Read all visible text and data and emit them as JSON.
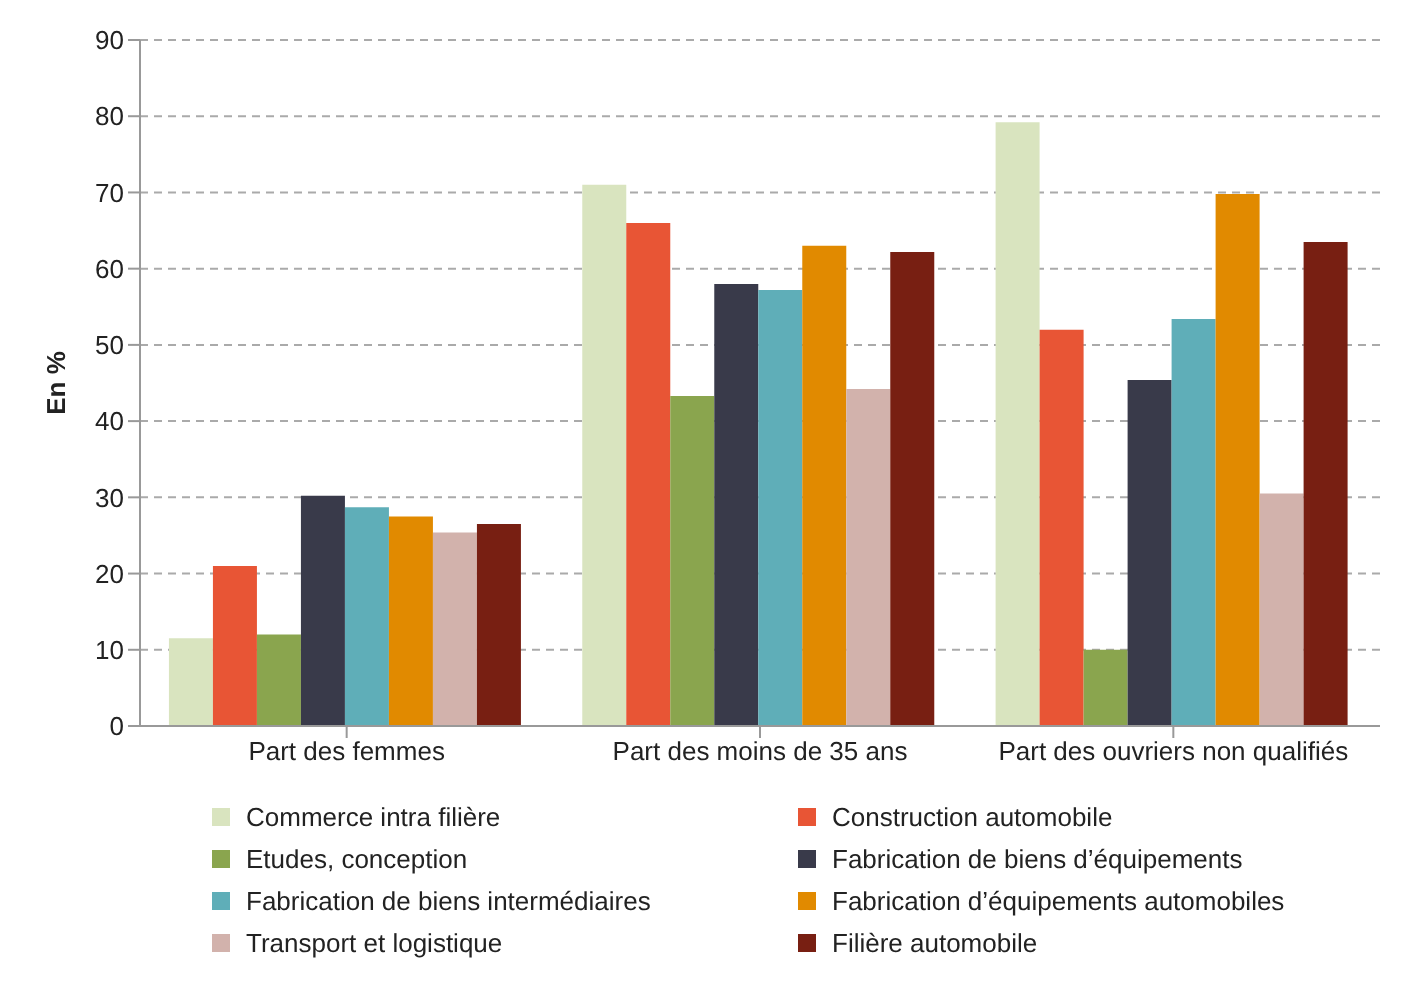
{
  "chart_data": {
    "type": "bar",
    "ylabel": "En %",
    "categories": [
      "Part des femmes",
      "Part des moins de 35 ans",
      "Part des ouvriers non qualifiés"
    ],
    "series": [
      {
        "name": "Commerce intra filière",
        "color": "#d9e4bf",
        "values": [
          11.5,
          71,
          79.2
        ]
      },
      {
        "name": "Construction automobile",
        "color": "#e85535",
        "values": [
          21,
          66,
          52
        ]
      },
      {
        "name": "Etudes, conception",
        "color": "#8aa54e",
        "values": [
          12,
          43.3,
          10
        ]
      },
      {
        "name": "Fabrication de biens d’équipements",
        "color": "#393a4a",
        "values": [
          30.2,
          58,
          45.4
        ]
      },
      {
        "name": "Fabrication de biens intermédiaires",
        "color": "#5faeb8",
        "values": [
          28.7,
          57.2,
          53.4
        ]
      },
      {
        "name": "Fabrication d’équipements automobiles",
        "color": "#e18a00",
        "values": [
          27.5,
          63,
          69.8
        ]
      },
      {
        "name": "Transport et logistique",
        "color": "#d2b2ac",
        "values": [
          25.4,
          44.2,
          30.5
        ]
      },
      {
        "name": "Filière automobile",
        "color": "#781f12",
        "values": [
          26.5,
          62.2,
          63.5
        ]
      }
    ],
    "ylim": [
      0,
      90
    ],
    "yticks": [
      0,
      10,
      20,
      30,
      40,
      50,
      60,
      70,
      80,
      90
    ],
    "grid": "y",
    "legend": "bottom"
  }
}
